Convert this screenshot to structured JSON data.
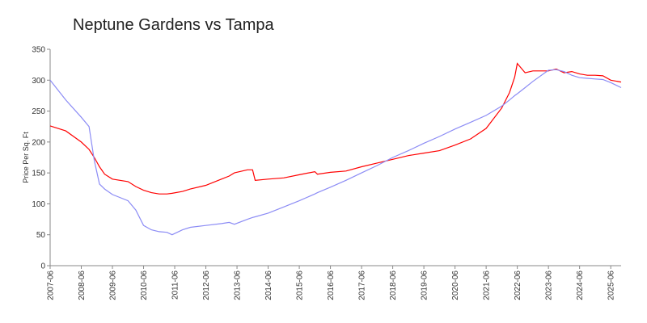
{
  "chart_data": {
    "type": "line",
    "title": "Neptune Gardens vs Tampa",
    "y_label": "Price Per Sq. Ft",
    "x": [
      "2007-06",
      "2007-12",
      "2008-06",
      "2008-09",
      "2008-11",
      "2009-01",
      "2009-03",
      "2009-06",
      "2009-12",
      "2010-03",
      "2010-06",
      "2010-09",
      "2010-12",
      "2011-03",
      "2011-05",
      "2011-09",
      "2011-12",
      "2012-06",
      "2012-12",
      "2013-03",
      "2013-05",
      "2013-10",
      "2013-12",
      "2014-01",
      "2014-06",
      "2014-12",
      "2015-06",
      "2015-12",
      "2016-01",
      "2016-06",
      "2016-12",
      "2017-06",
      "2017-12",
      "2018-06",
      "2018-12",
      "2019-06",
      "2019-12",
      "2020-06",
      "2020-12",
      "2021-06",
      "2021-12",
      "2022-03",
      "2022-05",
      "2022-06",
      "2022-09",
      "2022-12",
      "2023-06",
      "2023-09",
      "2023-12",
      "2024-03",
      "2024-06",
      "2024-09",
      "2024-12",
      "2025-03",
      "2025-06",
      "2025-10"
    ],
    "series": [
      {
        "color": "#ff0000",
        "values": [
          226,
          218,
          200,
          188,
          175,
          160,
          148,
          140,
          136,
          128,
          122,
          118,
          116,
          116,
          117,
          120,
          124,
          130,
          140,
          145,
          150,
          155,
          155,
          138,
          140,
          142,
          147,
          152,
          148,
          151,
          153,
          160,
          166,
          172,
          178,
          182,
          186,
          195,
          205,
          222,
          255,
          280,
          305,
          327,
          312,
          315,
          315,
          318,
          312,
          314,
          310,
          308,
          308,
          307,
          300,
          297
        ]
      },
      {
        "color": "#8c8cf5",
        "values": [
          300,
          268,
          240,
          225,
          170,
          132,
          124,
          115,
          105,
          90,
          65,
          58,
          55,
          54,
          50,
          58,
          62,
          65,
          68,
          70,
          67,
          75,
          78,
          79,
          85,
          95,
          105,
          116,
          118,
          127,
          138,
          150,
          162,
          175,
          186,
          198,
          209,
          221,
          232,
          243,
          258,
          268,
          275,
          278,
          288,
          298,
          316,
          317,
          314,
          308,
          304,
          303,
          302,
          301,
          296,
          288
        ]
      }
    ],
    "xlim": [
      "2007-06",
      "2025-10"
    ],
    "xticks": [
      "2007-06",
      "2008-06",
      "2009-06",
      "2010-06",
      "2011-06",
      "2012-06",
      "2013-06",
      "2014-06",
      "2015-06",
      "2016-06",
      "2017-06",
      "2018-06",
      "2019-06",
      "2020-06",
      "2021-06",
      "2022-06",
      "2023-06",
      "2024-06",
      "2025-06"
    ],
    "ylim": [
      0,
      350
    ],
    "yticks": [
      0,
      50,
      100,
      150,
      200,
      250,
      300,
      350
    ]
  }
}
